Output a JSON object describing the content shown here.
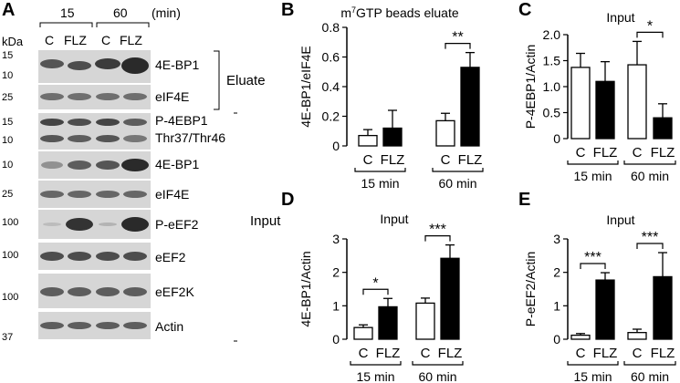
{
  "colors": {
    "control_bar": "#ffffff",
    "treated_bar": "#000000",
    "axis": "#000000",
    "blot_bg": "#d6d6d6",
    "band": "#2a2a2a"
  },
  "panel_a": {
    "letter": "A",
    "kda_label": "kDa",
    "time_labels": [
      "15",
      "60"
    ],
    "time_unit": "(min)",
    "lane_labels": [
      "C",
      "FLZ",
      "C",
      "FLZ"
    ],
    "blots": [
      {
        "label": "4E-BP1",
        "markers": [
          "15",
          "10"
        ]
      },
      {
        "label": "eIF4E",
        "markers": [
          "25"
        ]
      },
      {
        "label": "P-4EBP1",
        "label2": "Thr37/Thr46",
        "markers": [
          "15",
          "10"
        ]
      },
      {
        "label": "4E-BP1",
        "markers": [
          "10"
        ]
      },
      {
        "label": "eIF4E",
        "markers": [
          "25"
        ]
      },
      {
        "label": "P-eEF2",
        "markers": [
          "100"
        ]
      },
      {
        "label": "eEF2",
        "markers": [
          "100"
        ]
      },
      {
        "label": "eEF2K",
        "markers": [
          "100"
        ]
      },
      {
        "label": "Actin",
        "markers": [
          "37"
        ]
      }
    ],
    "bracket_labels": {
      "eluate": "Eluate",
      "input": "Input"
    }
  },
  "chart_data": [
    {
      "panel": "B",
      "type": "bar",
      "title": "m7GTP beads eluate",
      "ylabel": "4E-BP1/eIF4E",
      "ylim": [
        0,
        0.8
      ],
      "yticks": [
        "0",
        "0.2",
        "0.4",
        "0.6",
        "0.8"
      ],
      "categories": [
        "C",
        "FLZ",
        "C",
        "FLZ"
      ],
      "groups": [
        "15 min",
        "60 min"
      ],
      "values": [
        0.07,
        0.12,
        0.17,
        0.53
      ],
      "errors": [
        0.04,
        0.12,
        0.05,
        0.1
      ],
      "significance": [
        {
          "group": 1,
          "label": "**"
        }
      ]
    },
    {
      "panel": "C",
      "type": "bar",
      "title": "Input",
      "ylabel": "P-4EBP1/Actin",
      "ylim": [
        0,
        2.0
      ],
      "yticks": [
        "0",
        "0.5",
        "1.0",
        "1.5",
        "2.0"
      ],
      "categories": [
        "C",
        "FLZ",
        "C",
        "FLZ"
      ],
      "groups": [
        "15 min",
        "60 min"
      ],
      "values": [
        1.37,
        1.1,
        1.42,
        0.4
      ],
      "errors": [
        0.27,
        0.38,
        0.45,
        0.27
      ],
      "significance": [
        {
          "group": 1,
          "label": "*"
        }
      ]
    },
    {
      "panel": "D",
      "type": "bar",
      "title": "Input",
      "ylabel": "4E-BP1/Actin",
      "ylim": [
        0,
        3
      ],
      "yticks": [
        "0",
        "1",
        "2",
        "3"
      ],
      "categories": [
        "C",
        "FLZ",
        "C",
        "FLZ"
      ],
      "groups": [
        "15 min",
        "60 min"
      ],
      "values": [
        0.35,
        0.97,
        1.08,
        2.42
      ],
      "errors": [
        0.08,
        0.25,
        0.15,
        0.4
      ],
      "significance": [
        {
          "group": 0,
          "label": "*"
        },
        {
          "group": 1,
          "label": "***"
        }
      ]
    },
    {
      "panel": "E",
      "type": "bar",
      "title": "Input",
      "ylabel": "P-eEF2/Actin",
      "ylim": [
        0,
        3
      ],
      "yticks": [
        "0",
        "1",
        "2",
        "3"
      ],
      "categories": [
        "C",
        "FLZ",
        "C",
        "FLZ"
      ],
      "groups": [
        "15 min",
        "60 min"
      ],
      "values": [
        0.12,
        1.77,
        0.2,
        1.87
      ],
      "errors": [
        0.05,
        0.22,
        0.1,
        0.72
      ],
      "significance": [
        {
          "group": 0,
          "label": "***"
        },
        {
          "group": 1,
          "label": "***"
        }
      ]
    }
  ]
}
